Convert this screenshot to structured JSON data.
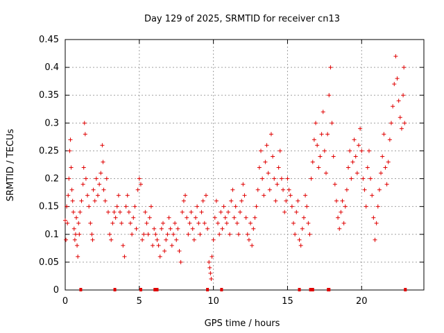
{
  "chart_data": {
    "type": "scatter",
    "title": "Day 129 of 2025, SRMTID for receiver cn13",
    "xlabel": "GPS time / hours",
    "ylabel": "SRMTID / TECUs",
    "xlim": [
      0,
      24.2
    ],
    "ylim": [
      0,
      0.45
    ],
    "xticks": [
      0,
      5,
      10,
      15,
      20
    ],
    "xtick_labels": [
      "0",
      "5",
      "10",
      "15",
      "20"
    ],
    "yticks": [
      0,
      0.05,
      0.1,
      0.15,
      0.2,
      0.25,
      0.3,
      0.35,
      0.4,
      0.45
    ],
    "ytick_labels": [
      "0",
      "0.05",
      "0.1",
      "0.15",
      "0.2",
      "0.25",
      "0.3",
      "0.35",
      "0.4",
      "0.45"
    ],
    "grid": true,
    "marker": "+",
    "color": "#e00000",
    "series": [
      {
        "name": "SRMTID",
        "points": [
          [
            0.0,
            0.125
          ],
          [
            0.05,
            0.09
          ],
          [
            0.1,
            0.15
          ],
          [
            0.15,
            0.12
          ],
          [
            0.2,
            0.17
          ],
          [
            0.25,
            0.2
          ],
          [
            0.3,
            0.25
          ],
          [
            0.35,
            0.27
          ],
          [
            0.4,
            0.22
          ],
          [
            0.45,
            0.18
          ],
          [
            0.5,
            0.16
          ],
          [
            0.55,
            0.14
          ],
          [
            0.6,
            0.11
          ],
          [
            0.65,
            0.09
          ],
          [
            0.7,
            0.1
          ],
          [
            0.75,
            0.13
          ],
          [
            0.8,
            0.08
          ],
          [
            0.85,
            0.06
          ],
          [
            0.9,
            0.12
          ],
          [
            0.95,
            0.1
          ],
          [
            1.0,
            0.14
          ],
          [
            1.1,
            0.16
          ],
          [
            1.2,
            0.19
          ],
          [
            1.25,
            0.22
          ],
          [
            1.3,
            0.3
          ],
          [
            1.35,
            0.28
          ],
          [
            1.4,
            0.2
          ],
          [
            1.5,
            0.17
          ],
          [
            1.6,
            0.15
          ],
          [
            1.7,
            0.12
          ],
          [
            1.8,
            0.1
          ],
          [
            1.85,
            0.09
          ],
          [
            1.9,
            0.18
          ],
          [
            2.0,
            0.16
          ],
          [
            2.1,
            0.2
          ],
          [
            2.2,
            0.17
          ],
          [
            2.3,
            0.19
          ],
          [
            2.4,
            0.21
          ],
          [
            2.5,
            0.26
          ],
          [
            2.55,
            0.23
          ],
          [
            2.6,
            0.18
          ],
          [
            2.7,
            0.16
          ],
          [
            2.8,
            0.2
          ],
          [
            2.9,
            0.14
          ],
          [
            3.0,
            0.1
          ],
          [
            3.1,
            0.09
          ],
          [
            3.2,
            0.12
          ],
          [
            3.3,
            0.14
          ],
          [
            3.4,
            0.13
          ],
          [
            3.5,
            0.15
          ],
          [
            3.6,
            0.17
          ],
          [
            3.7,
            0.14
          ],
          [
            3.8,
            0.12
          ],
          [
            3.9,
            0.08
          ],
          [
            4.0,
            0.06
          ],
          [
            4.1,
            0.15
          ],
          [
            4.2,
            0.17
          ],
          [
            4.3,
            0.14
          ],
          [
            4.4,
            0.12
          ],
          [
            4.5,
            0.1
          ],
          [
            4.6,
            0.13
          ],
          [
            4.7,
            0.15
          ],
          [
            4.8,
            0.11
          ],
          [
            4.9,
            0.18
          ],
          [
            5.0,
            0.2
          ],
          [
            5.1,
            0.19
          ],
          [
            5.2,
            0.09
          ],
          [
            5.3,
            0.1
          ],
          [
            5.4,
            0.14
          ],
          [
            5.5,
            0.12
          ],
          [
            5.6,
            0.1
          ],
          [
            5.7,
            0.13
          ],
          [
            5.8,
            0.15
          ],
          [
            5.9,
            0.08
          ],
          [
            6.0,
            0.11
          ],
          [
            6.1,
            0.1
          ],
          [
            6.2,
            0.09
          ],
          [
            6.3,
            0.08
          ],
          [
            6.4,
            0.06
          ],
          [
            6.5,
            0.11
          ],
          [
            6.6,
            0.12
          ],
          [
            6.7,
            0.07
          ],
          [
            6.8,
            0.09
          ],
          [
            6.9,
            0.1
          ],
          [
            7.0,
            0.13
          ],
          [
            7.1,
            0.11
          ],
          [
            7.2,
            0.08
          ],
          [
            7.3,
            0.1
          ],
          [
            7.4,
            0.12
          ],
          [
            7.5,
            0.09
          ],
          [
            7.6,
            0.11
          ],
          [
            7.7,
            0.07
          ],
          [
            7.8,
            0.05
          ],
          [
            7.9,
            0.14
          ],
          [
            8.0,
            0.16
          ],
          [
            8.1,
            0.17
          ],
          [
            8.2,
            0.13
          ],
          [
            8.3,
            0.1
          ],
          [
            8.4,
            0.12
          ],
          [
            8.5,
            0.14
          ],
          [
            8.6,
            0.11
          ],
          [
            8.7,
            0.09
          ],
          [
            8.8,
            0.13
          ],
          [
            8.9,
            0.15
          ],
          [
            9.0,
            0.12
          ],
          [
            9.1,
            0.1
          ],
          [
            9.2,
            0.14
          ],
          [
            9.3,
            0.16
          ],
          [
            9.4,
            0.12
          ],
          [
            9.5,
            0.17
          ],
          [
            9.6,
            0.11
          ],
          [
            9.7,
            0.05
          ],
          [
            9.75,
            0.04
          ],
          [
            9.8,
            0.03
          ],
          [
            9.85,
            0.02
          ],
          [
            9.9,
            0.06
          ],
          [
            10.0,
            0.09
          ],
          [
            10.1,
            0.13
          ],
          [
            10.2,
            0.16
          ],
          [
            10.3,
            0.12
          ],
          [
            10.4,
            0.1
          ],
          [
            10.5,
            0.14
          ],
          [
            10.6,
            0.11
          ],
          [
            10.7,
            0.15
          ],
          [
            10.8,
            0.13
          ],
          [
            10.9,
            0.12
          ],
          [
            11.0,
            0.14
          ],
          [
            11.1,
            0.1
          ],
          [
            11.2,
            0.16
          ],
          [
            11.3,
            0.18
          ],
          [
            11.4,
            0.13
          ],
          [
            11.5,
            0.15
          ],
          [
            11.6,
            0.12
          ],
          [
            11.7,
            0.1
          ],
          [
            11.8,
            0.14
          ],
          [
            11.9,
            0.16
          ],
          [
            12.0,
            0.19
          ],
          [
            12.1,
            0.17
          ],
          [
            12.2,
            0.13
          ],
          [
            12.3,
            0.1
          ],
          [
            12.4,
            0.09
          ],
          [
            12.5,
            0.12
          ],
          [
            12.6,
            0.08
          ],
          [
            12.7,
            0.11
          ],
          [
            12.8,
            0.13
          ],
          [
            12.9,
            0.15
          ],
          [
            13.0,
            0.18
          ],
          [
            13.1,
            0.22
          ],
          [
            13.2,
            0.25
          ],
          [
            13.3,
            0.2
          ],
          [
            13.4,
            0.17
          ],
          [
            13.5,
            0.23
          ],
          [
            13.6,
            0.26
          ],
          [
            13.7,
            0.21
          ],
          [
            13.8,
            0.18
          ],
          [
            13.9,
            0.28
          ],
          [
            14.0,
            0.24
          ],
          [
            14.1,
            0.2
          ],
          [
            14.2,
            0.16
          ],
          [
            14.3,
            0.19
          ],
          [
            14.4,
            0.22
          ],
          [
            14.5,
            0.25
          ],
          [
            14.6,
            0.2
          ],
          [
            14.7,
            0.18
          ],
          [
            14.8,
            0.14
          ],
          [
            14.9,
            0.16
          ],
          [
            15.0,
            0.2
          ],
          [
            15.1,
            0.18
          ],
          [
            15.2,
            0.17
          ],
          [
            15.3,
            0.15
          ],
          [
            15.4,
            0.12
          ],
          [
            15.5,
            0.1
          ],
          [
            15.6,
            0.14
          ],
          [
            15.7,
            0.16
          ],
          [
            15.8,
            0.09
          ],
          [
            15.9,
            0.08
          ],
          [
            16.0,
            0.11
          ],
          [
            16.1,
            0.13
          ],
          [
            16.2,
            0.17
          ],
          [
            16.3,
            0.15
          ],
          [
            16.4,
            0.12
          ],
          [
            16.5,
            0.1
          ],
          [
            16.6,
            0.2
          ],
          [
            16.7,
            0.23
          ],
          [
            16.8,
            0.27
          ],
          [
            16.9,
            0.3
          ],
          [
            17.0,
            0.26
          ],
          [
            17.1,
            0.22
          ],
          [
            17.2,
            0.24
          ],
          [
            17.3,
            0.28
          ],
          [
            17.4,
            0.32
          ],
          [
            17.5,
            0.25
          ],
          [
            17.6,
            0.21
          ],
          [
            17.7,
            0.28
          ],
          [
            17.8,
            0.35
          ],
          [
            17.9,
            0.4
          ],
          [
            18.0,
            0.3
          ],
          [
            18.1,
            0.24
          ],
          [
            18.2,
            0.19
          ],
          [
            18.3,
            0.16
          ],
          [
            18.4,
            0.13
          ],
          [
            18.5,
            0.11
          ],
          [
            18.6,
            0.14
          ],
          [
            18.7,
            0.16
          ],
          [
            18.8,
            0.12
          ],
          [
            18.9,
            0.15
          ],
          [
            19.0,
            0.18
          ],
          [
            19.1,
            0.22
          ],
          [
            19.2,
            0.25
          ],
          [
            19.3,
            0.2
          ],
          [
            19.4,
            0.23
          ],
          [
            19.5,
            0.27
          ],
          [
            19.6,
            0.24
          ],
          [
            19.7,
            0.21
          ],
          [
            19.8,
            0.26
          ],
          [
            19.9,
            0.29
          ],
          [
            20.0,
            0.25
          ],
          [
            20.1,
            0.2
          ],
          [
            20.2,
            0.18
          ],
          [
            20.3,
            0.15
          ],
          [
            20.4,
            0.22
          ],
          [
            20.5,
            0.25
          ],
          [
            20.6,
            0.2
          ],
          [
            20.7,
            0.17
          ],
          [
            20.8,
            0.13
          ],
          [
            20.9,
            0.09
          ],
          [
            21.0,
            0.12
          ],
          [
            21.1,
            0.15
          ],
          [
            21.2,
            0.18
          ],
          [
            21.3,
            0.21
          ],
          [
            21.4,
            0.24
          ],
          [
            21.5,
            0.28
          ],
          [
            21.6,
            0.22
          ],
          [
            21.7,
            0.19
          ],
          [
            21.8,
            0.23
          ],
          [
            21.9,
            0.27
          ],
          [
            22.0,
            0.3
          ],
          [
            22.1,
            0.33
          ],
          [
            22.2,
            0.37
          ],
          [
            22.3,
            0.42
          ],
          [
            22.4,
            0.38
          ],
          [
            22.5,
            0.34
          ],
          [
            22.6,
            0.31
          ],
          [
            22.7,
            0.29
          ],
          [
            22.8,
            0.35
          ],
          [
            22.85,
            0.4
          ],
          [
            22.9,
            0.3
          ]
        ]
      }
    ],
    "zero_markers_x": [
      1.05,
      3.35,
      5.1,
      6.05,
      6.2,
      9.6,
      10.55,
      15.8,
      16.55,
      16.7,
      17.75,
      17.8,
      22.95
    ]
  }
}
